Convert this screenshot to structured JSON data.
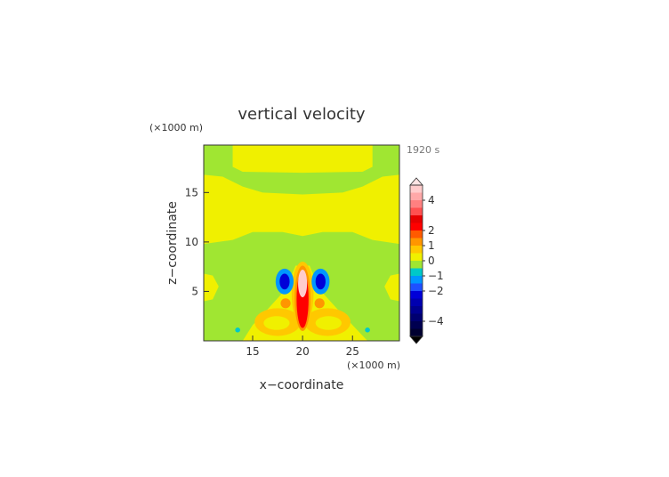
{
  "chart_data": {
    "type": "contour",
    "title": "vertical velocity",
    "time_label": "1920 s",
    "x_label": "x−coordinate",
    "y_label": "z−coordinate",
    "x_unit": "(×1000 m)",
    "y_unit": "(×1000 m)",
    "xlim": [
      10.1,
      29.7
    ],
    "ylim": [
      0,
      19.8
    ],
    "xticks": [
      15,
      20,
      25
    ],
    "yticks": [
      5,
      10,
      15
    ],
    "colorbar": {
      "bounds": [
        -5,
        -4.5,
        -4,
        -3.5,
        -3,
        -2.5,
        -2,
        -1.5,
        -1,
        -0.5,
        0,
        0.5,
        1,
        1.5,
        2,
        2.5,
        3,
        3.5,
        4,
        4.5,
        5
      ],
      "colors": [
        "#000030",
        "#000050",
        "#000070",
        "#000090",
        "#0000b0",
        "#0000d8",
        "#1e50ff",
        "#0096ff",
        "#00c8c8",
        "#a0e632",
        "#f0f000",
        "#ffc800",
        "#ff9600",
        "#ff5a00",
        "#ff0000",
        "#e60000",
        "#ff5050",
        "#ff8080",
        "#ffa8a8",
        "#ffcccc"
      ],
      "over_color": "#ffe4e4",
      "under_color": "#000000",
      "ticks": [
        4,
        2,
        1,
        0,
        {
          "value": -1,
          "label": "−1"
        },
        {
          "value": -2,
          "label": "−2"
        },
        {
          "value": -4,
          "label": "−4"
        }
      ]
    },
    "background_level": -0.5,
    "regions": [
      {
        "level": 0,
        "points": [
          [
            13,
            19.8
          ],
          [
            13,
            17.6
          ],
          [
            14,
            17.1
          ],
          [
            20,
            17
          ],
          [
            26,
            17.1
          ],
          [
            27,
            17.6
          ],
          [
            27,
            19.8
          ]
        ]
      },
      {
        "level": 0,
        "points": [
          [
            10.1,
            16.8
          ],
          [
            12,
            16.6
          ],
          [
            14,
            15.6
          ],
          [
            16,
            15.0
          ],
          [
            20,
            14.8
          ],
          [
            24,
            15.0
          ],
          [
            26,
            15.6
          ],
          [
            28,
            16.6
          ],
          [
            29.7,
            16.8
          ],
          [
            29.7,
            9.8
          ],
          [
            27,
            10.2
          ],
          [
            25,
            11.0
          ],
          [
            22,
            11.0
          ],
          [
            20,
            10.6
          ],
          [
            18,
            11.0
          ],
          [
            15,
            11.0
          ],
          [
            13,
            10.2
          ],
          [
            10.1,
            9.8
          ]
        ]
      },
      {
        "level": 0,
        "points": [
          [
            10.1,
            4.0
          ],
          [
            11,
            4.2
          ],
          [
            11.6,
            5.5
          ],
          [
            11,
            6.6
          ],
          [
            10.1,
            6.8
          ]
        ]
      },
      {
        "level": 0,
        "points": [
          [
            29.7,
            4.0
          ],
          [
            28.8,
            4.2
          ],
          [
            28.2,
            5.5
          ],
          [
            28.8,
            6.6
          ],
          [
            29.7,
            6.8
          ]
        ]
      },
      {
        "level": 0,
        "points": [
          [
            14,
            0
          ],
          [
            15,
            1.6
          ],
          [
            16.5,
            3.2
          ],
          [
            18.3,
            5.2
          ],
          [
            19.3,
            7.6
          ],
          [
            20.7,
            7.6
          ],
          [
            21.7,
            5.2
          ],
          [
            23.5,
            3.2
          ],
          [
            25,
            1.6
          ],
          [
            26.5,
            0
          ]
        ]
      },
      {
        "level": 0.5,
        "ellipse": [
          17.5,
          1.9,
          2.3,
          1.4
        ]
      },
      {
        "level": 0.5,
        "ellipse": [
          22.5,
          1.9,
          2.3,
          1.4
        ]
      },
      {
        "level": 0.5,
        "ellipse": [
          20,
          4.8,
          1.1,
          3.2
        ]
      },
      {
        "level": 0,
        "ellipse": [
          17.4,
          1.8,
          1.3,
          0.7
        ]
      },
      {
        "level": 0,
        "ellipse": [
          22.6,
          1.8,
          1.3,
          0.7
        ]
      },
      {
        "level": 1,
        "ellipse": [
          18.3,
          3.8,
          0.5,
          0.5
        ]
      },
      {
        "level": 1,
        "ellipse": [
          21.7,
          3.8,
          0.5,
          0.5
        ]
      },
      {
        "level": 1,
        "ellipse": [
          20,
          4.3,
          0.8,
          3.3
        ]
      },
      {
        "level": 2,
        "ellipse": [
          20,
          4.2,
          0.6,
          2.9
        ]
      },
      {
        "level": 4.5,
        "ellipse": [
          20,
          5.8,
          0.45,
          1.4
        ]
      },
      {
        "level": -1.5,
        "ellipse": [
          18.2,
          6.0,
          0.9,
          1.3
        ]
      },
      {
        "level": -1.5,
        "ellipse": [
          21.8,
          6.0,
          0.9,
          1.3
        ]
      },
      {
        "level": -2.5,
        "ellipse": [
          18.2,
          6.0,
          0.5,
          0.8
        ]
      },
      {
        "level": -2.5,
        "ellipse": [
          21.8,
          6.0,
          0.5,
          0.8
        ]
      },
      {
        "level": -1,
        "ellipse": [
          13.5,
          1.1,
          0.25,
          0.25
        ]
      },
      {
        "level": -1,
        "ellipse": [
          26.5,
          1.1,
          0.25,
          0.25
        ]
      }
    ]
  }
}
